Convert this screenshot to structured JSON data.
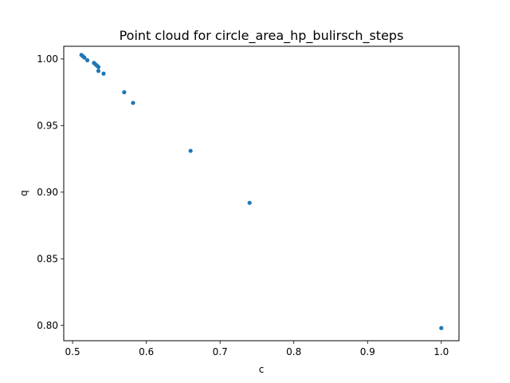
{
  "chart_data": {
    "type": "scatter",
    "title": "Point cloud for circle_area_hp_bulirsch_steps",
    "xlabel": "c",
    "ylabel": "q",
    "xlim": [
      0.488,
      1.024
    ],
    "ylim": [
      0.7885,
      1.0095
    ],
    "xticks": [
      0.5,
      0.6,
      0.7,
      0.8,
      0.9,
      1.0
    ],
    "xtick_labels": [
      "0.5",
      "0.6",
      "0.7",
      "0.8",
      "0.9",
      "1.0"
    ],
    "yticks": [
      0.8,
      0.85,
      0.9,
      0.95,
      1.0
    ],
    "ytick_labels": [
      "0.80",
      "0.85",
      "0.90",
      "0.95",
      "1.00"
    ],
    "grid": false,
    "marker_color": "#1f77b4",
    "points": [
      {
        "x": 0.512,
        "y": 1.003
      },
      {
        "x": 0.514,
        "y": 1.002
      },
      {
        "x": 0.516,
        "y": 1.001
      },
      {
        "x": 0.52,
        "y": 0.999
      },
      {
        "x": 0.529,
        "y": 0.997
      },
      {
        "x": 0.531,
        "y": 0.996
      },
      {
        "x": 0.533,
        "y": 0.995
      },
      {
        "x": 0.535,
        "y": 0.994
      },
      {
        "x": 0.535,
        "y": 0.991
      },
      {
        "x": 0.542,
        "y": 0.989
      },
      {
        "x": 0.57,
        "y": 0.975
      },
      {
        "x": 0.582,
        "y": 0.967
      },
      {
        "x": 0.66,
        "y": 0.931
      },
      {
        "x": 0.74,
        "y": 0.892
      },
      {
        "x": 1.0,
        "y": 0.798
      }
    ]
  }
}
